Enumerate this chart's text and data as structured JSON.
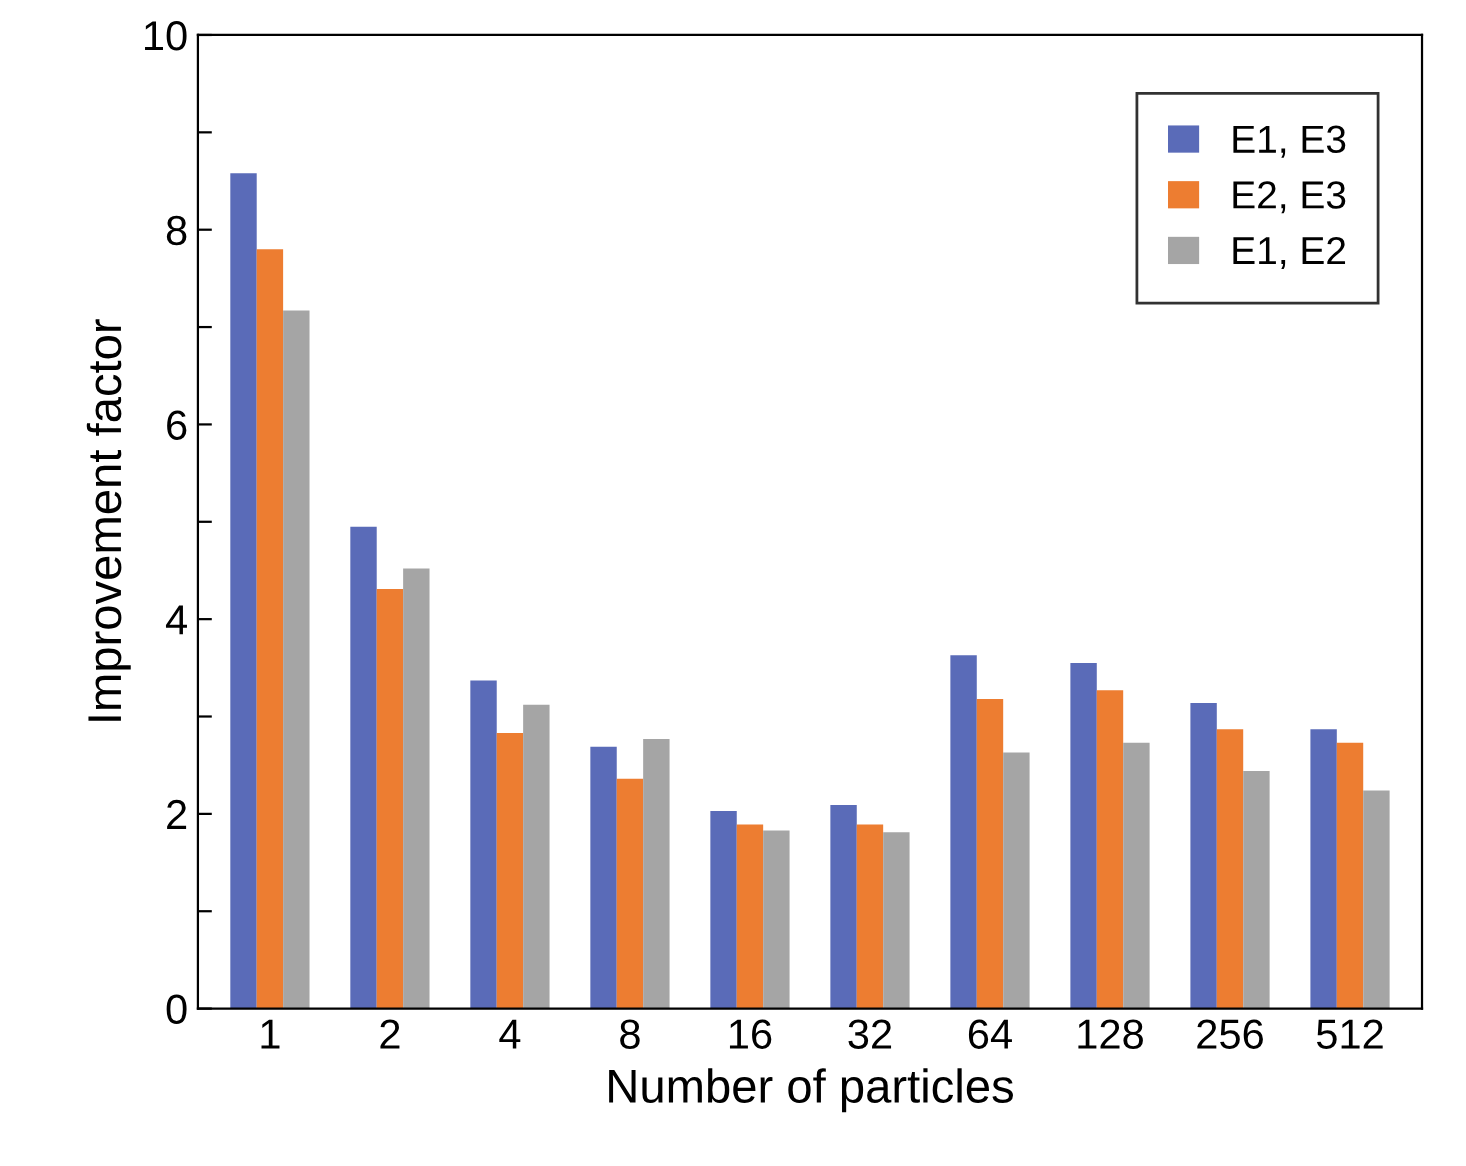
{
  "chart_data": {
    "type": "bar",
    "xlabel": "Number of particles",
    "ylabel": "Improvement factor",
    "categories": [
      "1",
      "2",
      "4",
      "8",
      "16",
      "32",
      "64",
      "128",
      "256",
      "512"
    ],
    "series": [
      {
        "name": "E1, E3",
        "color": "#5a6bb8",
        "values": [
          8.58,
          4.95,
          3.37,
          2.69,
          2.03,
          2.09,
          3.63,
          3.55,
          3.14,
          2.87
        ]
      },
      {
        "name": "E2, E3",
        "color": "#ed7d31",
        "values": [
          7.8,
          4.31,
          2.83,
          2.36,
          1.89,
          1.89,
          3.18,
          3.27,
          2.87,
          2.73
        ]
      },
      {
        "name": "E1, E2",
        "color": "#a5a5a5",
        "values": [
          7.17,
          4.52,
          3.12,
          2.77,
          1.83,
          1.81,
          2.63,
          2.73,
          2.44,
          2.24
        ]
      }
    ],
    "ylim": [
      0,
      10
    ],
    "yticks": [
      0,
      {
        "value": 1,
        "label": null
      },
      2,
      {
        "value": 3,
        "label": null
      },
      4,
      {
        "value": 5,
        "label": null
      },
      6,
      {
        "value": 7,
        "label": null
      },
      8,
      {
        "value": 9,
        "label": null
      },
      10
    ],
    "grid": false,
    "legend": "top right"
  }
}
